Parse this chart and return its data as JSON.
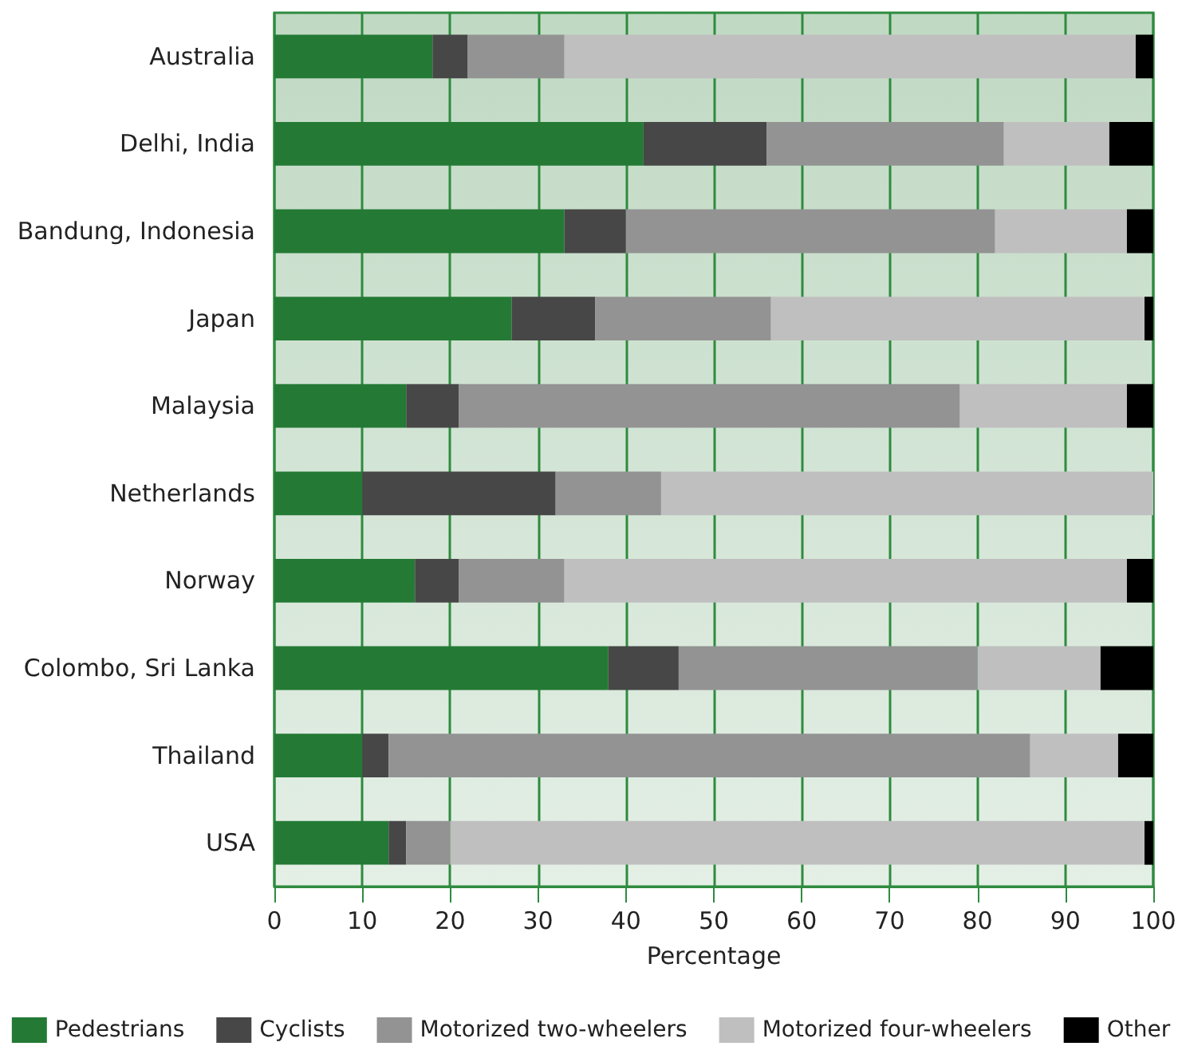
{
  "chart_data": {
    "type": "bar",
    "orientation": "horizontal",
    "stacked": true,
    "xlabel": "Percentage",
    "categories": [
      "Australia",
      "Delhi, India",
      "Bandung, Indonesia",
      "Japan",
      "Malaysia",
      "Netherlands",
      "Norway",
      "Colombo, Sri Lanka",
      "Thailand",
      "USA"
    ],
    "series": [
      {
        "name": "Pedestrians",
        "color": "#247a35",
        "values": [
          18,
          42,
          33,
          27,
          15,
          10,
          16,
          38,
          10,
          13
        ]
      },
      {
        "name": "Cyclists",
        "color": "#474747",
        "values": [
          4,
          14,
          7,
          9.5,
          6,
          22,
          5,
          8,
          3,
          2
        ]
      },
      {
        "name": "Motorized two-wheelers",
        "color": "#939393",
        "values": [
          11,
          27,
          42,
          20,
          57,
          12,
          12,
          34,
          73,
          5
        ]
      },
      {
        "name": "Motorized four-wheelers",
        "color": "#bfbfbf",
        "values": [
          65,
          12,
          15,
          42.5,
          19,
          56,
          64,
          14,
          10,
          79
        ]
      },
      {
        "name": "Other",
        "color": "#000000",
        "values": [
          2,
          5,
          3,
          1,
          3,
          0,
          3,
          6,
          4,
          1
        ]
      }
    ],
    "xlim": [
      0,
      100
    ],
    "xticks": [
      0,
      10,
      20,
      30,
      40,
      50,
      60,
      70,
      80,
      90,
      100
    ],
    "grid": "x",
    "legend": "bottom"
  }
}
